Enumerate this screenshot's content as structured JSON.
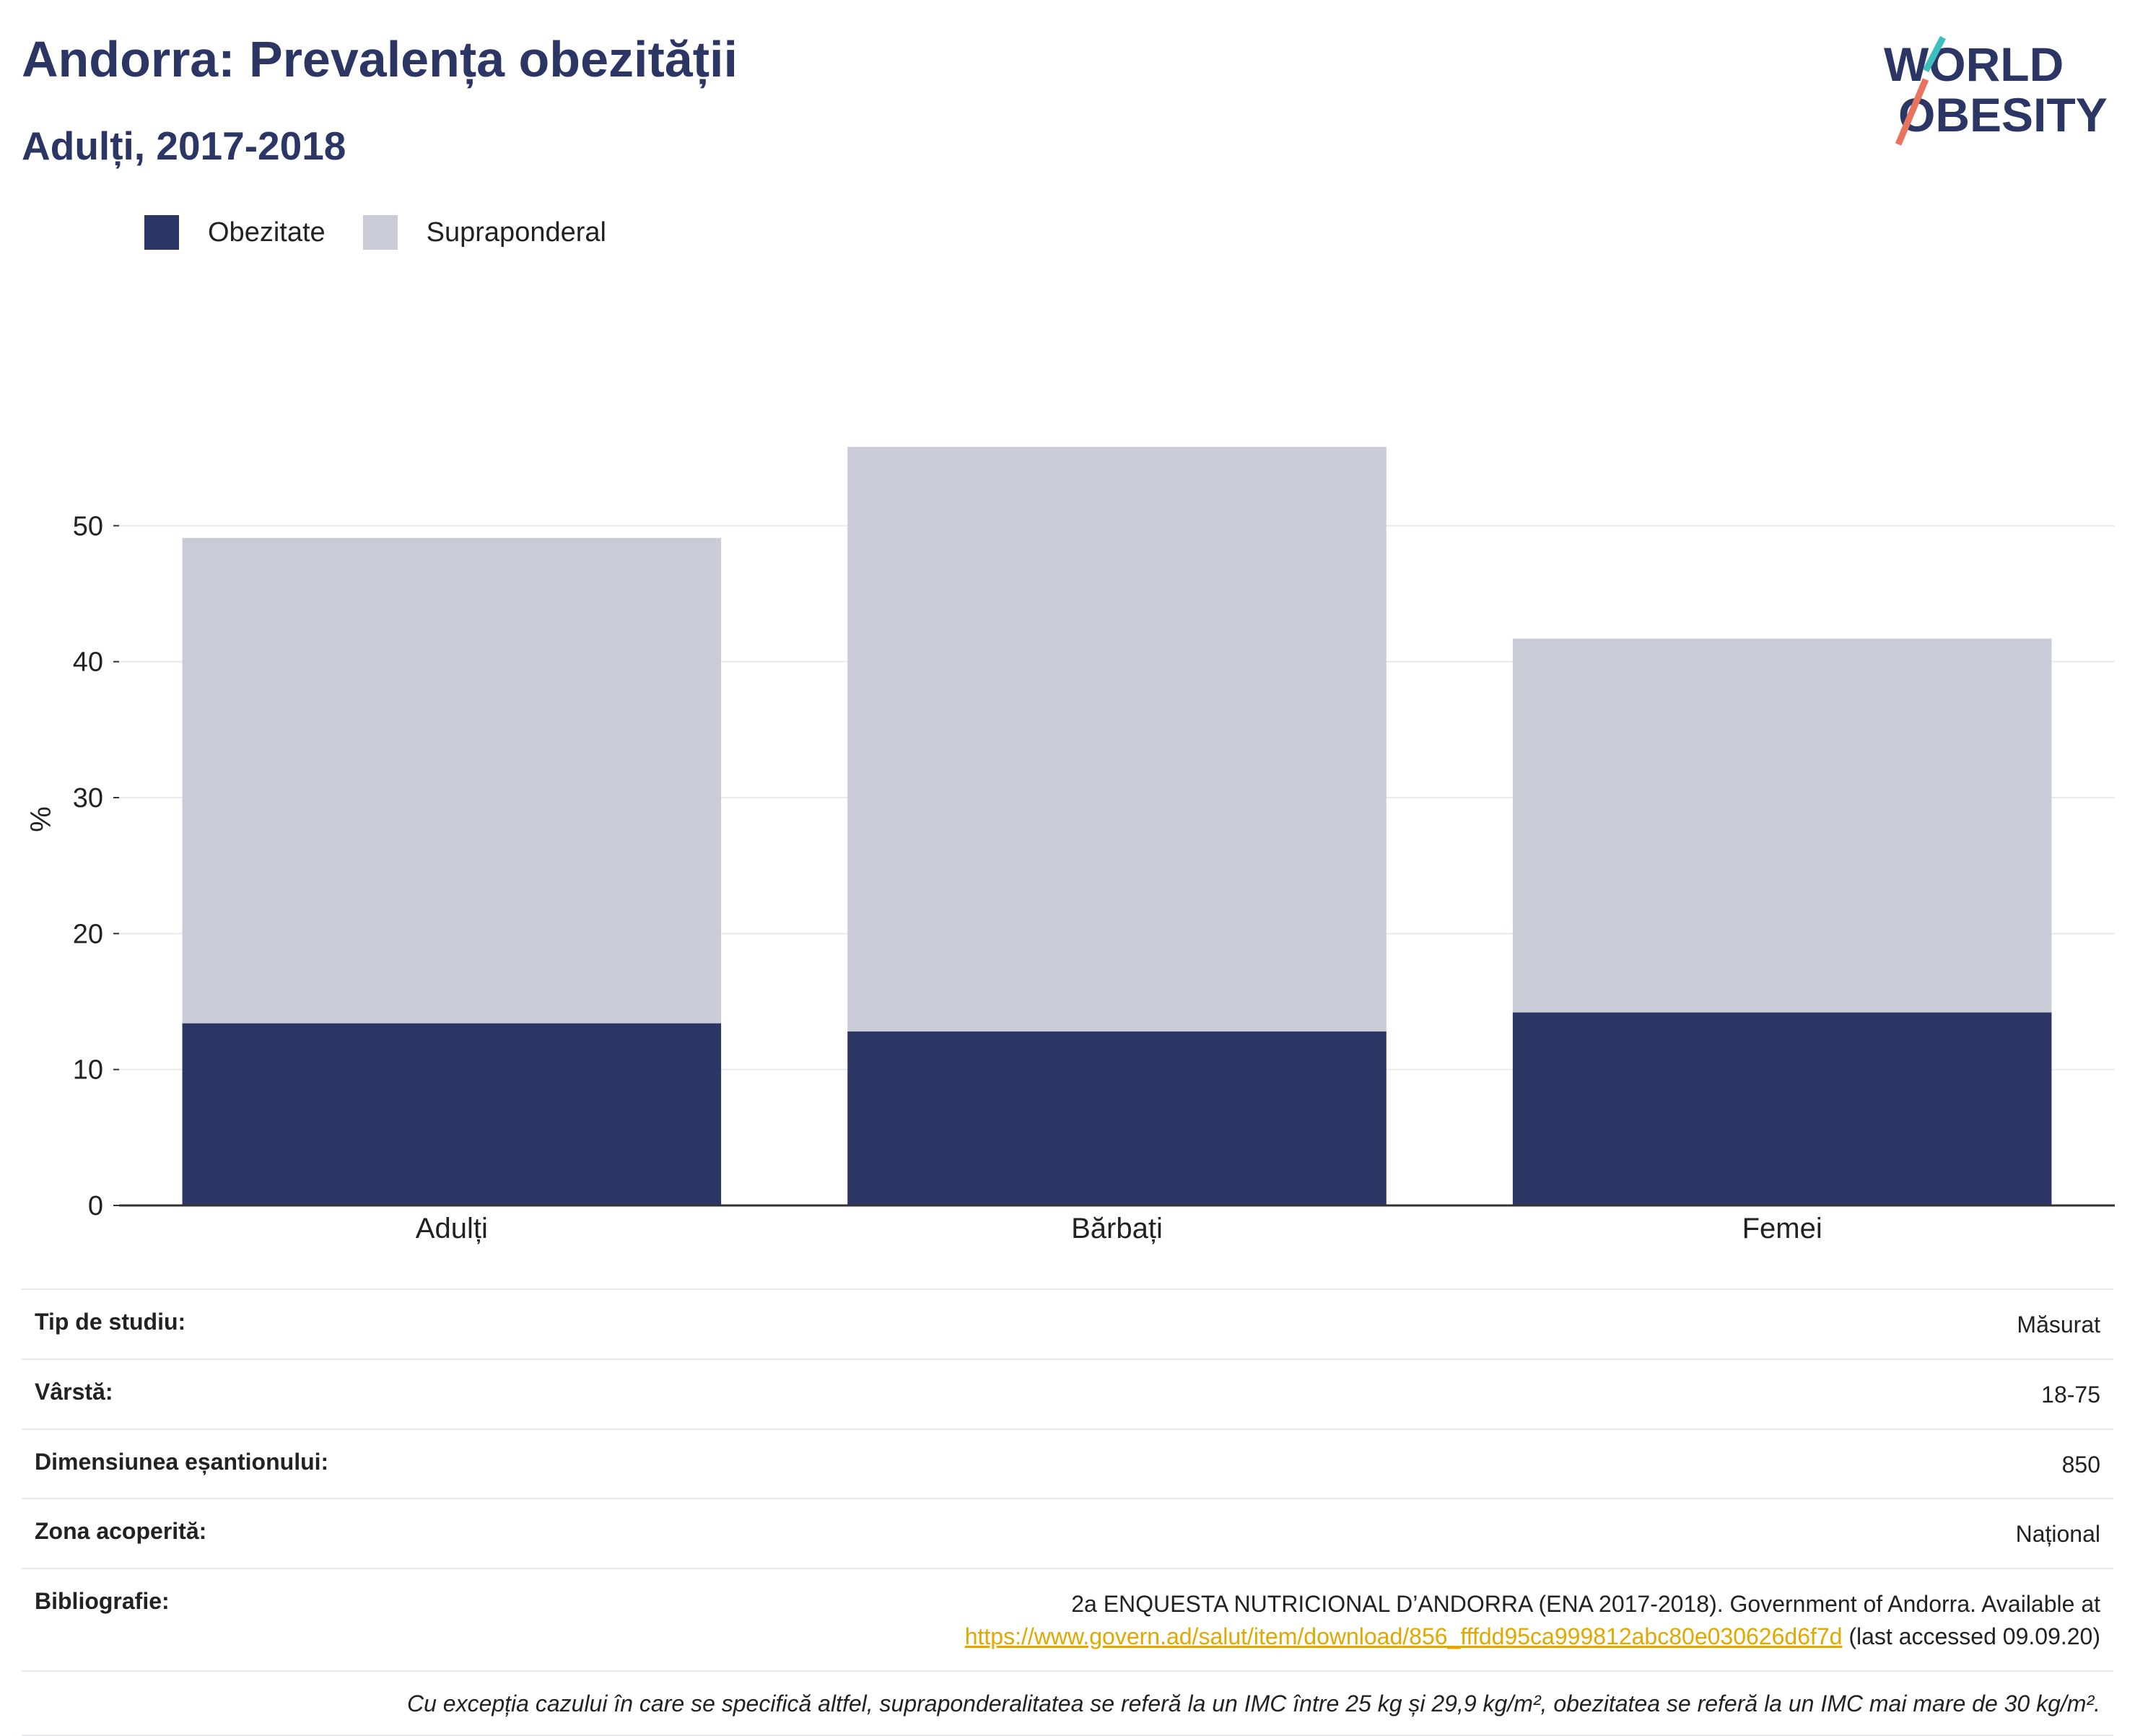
{
  "title": "Andorra: Prevalența obezității",
  "subtitle": "Adulți, 2017-2018",
  "logo": {
    "line1": "WORLD",
    "line2": "OBESITY"
  },
  "colors": {
    "obesity": "#2b3664",
    "overweight": "#c9cbd6",
    "accent_teal": "#3bbfbf",
    "accent_coral": "#e8735e",
    "link": "#e0a800"
  },
  "legend": [
    {
      "label": "Obezitate",
      "color": "#2b3664"
    },
    {
      "label": "Supraponderal",
      "color": "#c9cbd6"
    }
  ],
  "chart_data": {
    "type": "bar",
    "stacked": true,
    "categories": [
      "Adulți",
      "Bărbați",
      "Femei"
    ],
    "series": [
      {
        "name": "Obezitate",
        "values": [
          13.4,
          12.8,
          14.2
        ]
      },
      {
        "name": "Supraponderal",
        "values": [
          35.7,
          43.0,
          27.5
        ]
      }
    ],
    "ylabel": "%",
    "ylim": [
      0,
      60
    ],
    "yticks": [
      0,
      10,
      20,
      30,
      40,
      50
    ],
    "grid": true,
    "legend_position": "top-left"
  },
  "info": {
    "rows": [
      {
        "label": "Tip de studiu:",
        "value": "Măsurat"
      },
      {
        "label": "Vârstă:",
        "value": "18-75"
      },
      {
        "label": "Dimensiunea eșantionului:",
        "value": "850"
      },
      {
        "label": "Zona acoperită:",
        "value": "Național"
      }
    ],
    "bibliography": {
      "label": "Bibliografie:",
      "line1": "2a ENQUESTA NUTRICIONAL D’ANDORRA (ENA 2017-2018). Government of Andorra. Available at",
      "link": "https://www.govern.ad/salut/item/download/856_fffdd95ca999812abc80e030626d6f7d",
      "suffix": " (last accessed 09.09.20)"
    },
    "note": "Cu excepția cazului în care se specifică altfel, supraponderalitatea se referă la un IMC între 25 kg și 29,9 kg/m², obezitatea se referă la un IMC mai mare de 30 kg/m²."
  }
}
